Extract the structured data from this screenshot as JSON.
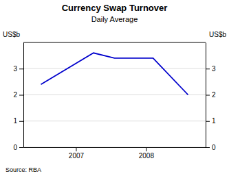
{
  "chart_data": {
    "type": "line",
    "title": "Currency Swap Turnover",
    "subtitle": "Daily Average",
    "ylabel": "US$b",
    "y2label": "US$b",
    "source": "Source: RBA",
    "x": [
      2006.5,
      2007.25,
      2007.55,
      2008.1,
      2008.6
    ],
    "values": [
      2.4,
      3.6,
      3.4,
      3.4,
      2.0
    ],
    "color": "#0000cc",
    "xlim": [
      2006.25,
      2008.85
    ],
    "xticks": [
      2007,
      2008
    ],
    "ylim": [
      0,
      4
    ],
    "yticks": [
      0,
      1,
      2,
      3
    ],
    "y2lim": [
      0,
      4
    ],
    "y2ticks": [
      0,
      1,
      2,
      3
    ],
    "grid": true
  }
}
